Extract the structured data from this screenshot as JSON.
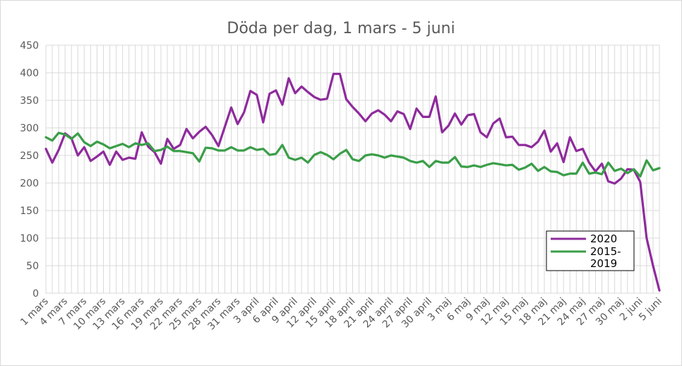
{
  "chart_data": {
    "type": "line",
    "title": "Döda per dag, 1 mars - 5 juni",
    "xlabel": "",
    "ylabel": "",
    "ylim": [
      0,
      450
    ],
    "yticks": [
      0,
      50,
      100,
      150,
      200,
      250,
      300,
      350,
      400,
      450
    ],
    "grid": true,
    "legend_position": "bottom-right",
    "x_tick_labels": [
      "1 mars",
      "4 mars",
      "7 mars",
      "10 mars",
      "13 mars",
      "16 mars",
      "19 mars",
      "22 mars",
      "25 mars",
      "28 mars",
      "31 mars",
      "3 april",
      "6 april",
      "9 april",
      "12 april",
      "15 april",
      "18 april",
      "21 april",
      "24 april",
      "27 april",
      "30 april",
      "3 maj",
      "6 maj",
      "9 maj",
      "12 maj",
      "15 maj",
      "18 maj",
      "21 maj",
      "24 maj",
      "27 maj",
      "30 maj",
      "2 juni",
      "5 juni"
    ],
    "x_tick_step": 3,
    "num_days": 97,
    "series": [
      {
        "name": "2020",
        "color": "#8e2b9c",
        "values": [
          262,
          237,
          260,
          290,
          281,
          250,
          265,
          240,
          248,
          257,
          233,
          257,
          242,
          246,
          244,
          292,
          266,
          256,
          235,
          280,
          262,
          269,
          298,
          281,
          293,
          302,
          287,
          267,
          302,
          337,
          307,
          328,
          367,
          360,
          310,
          362,
          368,
          342,
          390,
          363,
          375,
          365,
          356,
          351,
          353,
          398,
          398,
          352,
          338,
          326,
          312,
          326,
          332,
          324,
          312,
          330,
          325,
          298,
          335,
          320,
          320,
          357,
          292,
          304,
          326,
          306,
          323,
          325,
          292,
          283,
          308,
          317,
          283,
          284,
          269,
          269,
          265,
          275,
          295,
          257,
          272,
          238,
          283,
          258,
          262,
          237,
          221,
          235,
          203,
          199,
          208,
          225,
          224,
          202,
          100,
          50,
          5
        ]
      },
      {
        "name": "2015-2019",
        "color": "#3a9e48",
        "values": [
          283,
          277,
          291,
          288,
          280,
          290,
          274,
          267,
          275,
          270,
          263,
          267,
          271,
          265,
          272,
          269,
          272,
          258,
          260,
          266,
          258,
          258,
          256,
          254,
          239,
          264,
          263,
          259,
          259,
          265,
          259,
          259,
          265,
          260,
          262,
          251,
          253,
          269,
          246,
          242,
          246,
          237,
          251,
          256,
          251,
          243,
          253,
          260,
          243,
          240,
          250,
          252,
          250,
          246,
          250,
          248,
          246,
          240,
          237,
          240,
          229,
          240,
          237,
          237,
          247,
          230,
          229,
          232,
          229,
          233,
          236,
          234,
          232,
          233,
          224,
          228,
          235,
          222,
          229,
          221,
          220,
          214,
          217,
          217,
          237,
          217,
          219,
          216,
          237,
          222,
          226,
          218,
          225,
          212,
          241,
          223,
          227
        ]
      }
    ]
  },
  "legend": {
    "items": [
      {
        "label": "2020",
        "color": "#8e2b9c"
      },
      {
        "label_line1": "2015-",
        "label_line2": "2019",
        "color": "#3a9e48"
      }
    ]
  }
}
